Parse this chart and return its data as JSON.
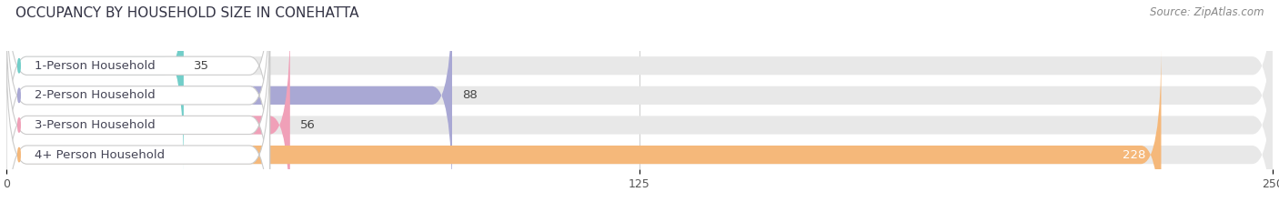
{
  "title": "OCCUPANCY BY HOUSEHOLD SIZE IN CONEHATTA",
  "source": "Source: ZipAtlas.com",
  "categories": [
    "1-Person Household",
    "2-Person Household",
    "3-Person Household",
    "4+ Person Household"
  ],
  "values": [
    35,
    88,
    56,
    228
  ],
  "bar_colors": [
    "#72cec9",
    "#a9a8d4",
    "#f0a0b8",
    "#f5b87a"
  ],
  "xlim": [
    0,
    250
  ],
  "xticks": [
    0,
    125,
    250
  ],
  "background_color": "#ffffff",
  "bar_bg_color": "#e8e8e8",
  "title_fontsize": 11,
  "label_fontsize": 9.5,
  "value_fontsize": 9.5,
  "source_fontsize": 8.5,
  "bar_height": 0.62
}
